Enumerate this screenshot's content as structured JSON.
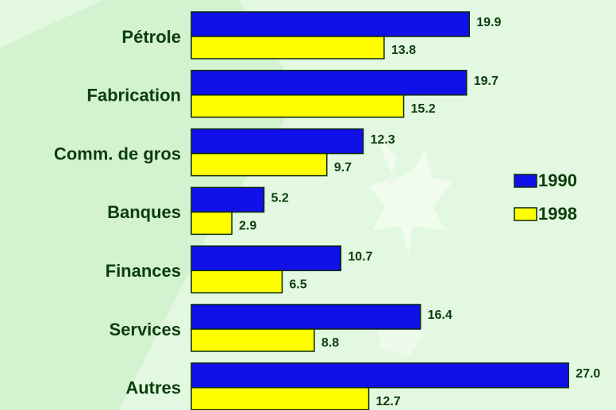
{
  "chart_data": {
    "type": "bar",
    "orientation": "horizontal",
    "categories": [
      "Pétrole",
      "Fabrication",
      "Comm. de gros",
      "Banques",
      "Finances",
      "Services",
      "Autres"
    ],
    "series": [
      {
        "name": "1990",
        "color": "#1010e8",
        "values": [
          19.9,
          19.7,
          12.3,
          5.2,
          10.7,
          16.4,
          27.0
        ],
        "value_labels": [
          "19.9",
          "19.7",
          "12.3",
          "5.2",
          "10.7",
          "16.4",
          "27.0"
        ]
      },
      {
        "name": "1998",
        "color": "#ffff00",
        "values": [
          13.8,
          15.2,
          9.7,
          2.9,
          6.5,
          8.8,
          12.7
        ]
      }
    ],
    "legend": "right"
  }
}
